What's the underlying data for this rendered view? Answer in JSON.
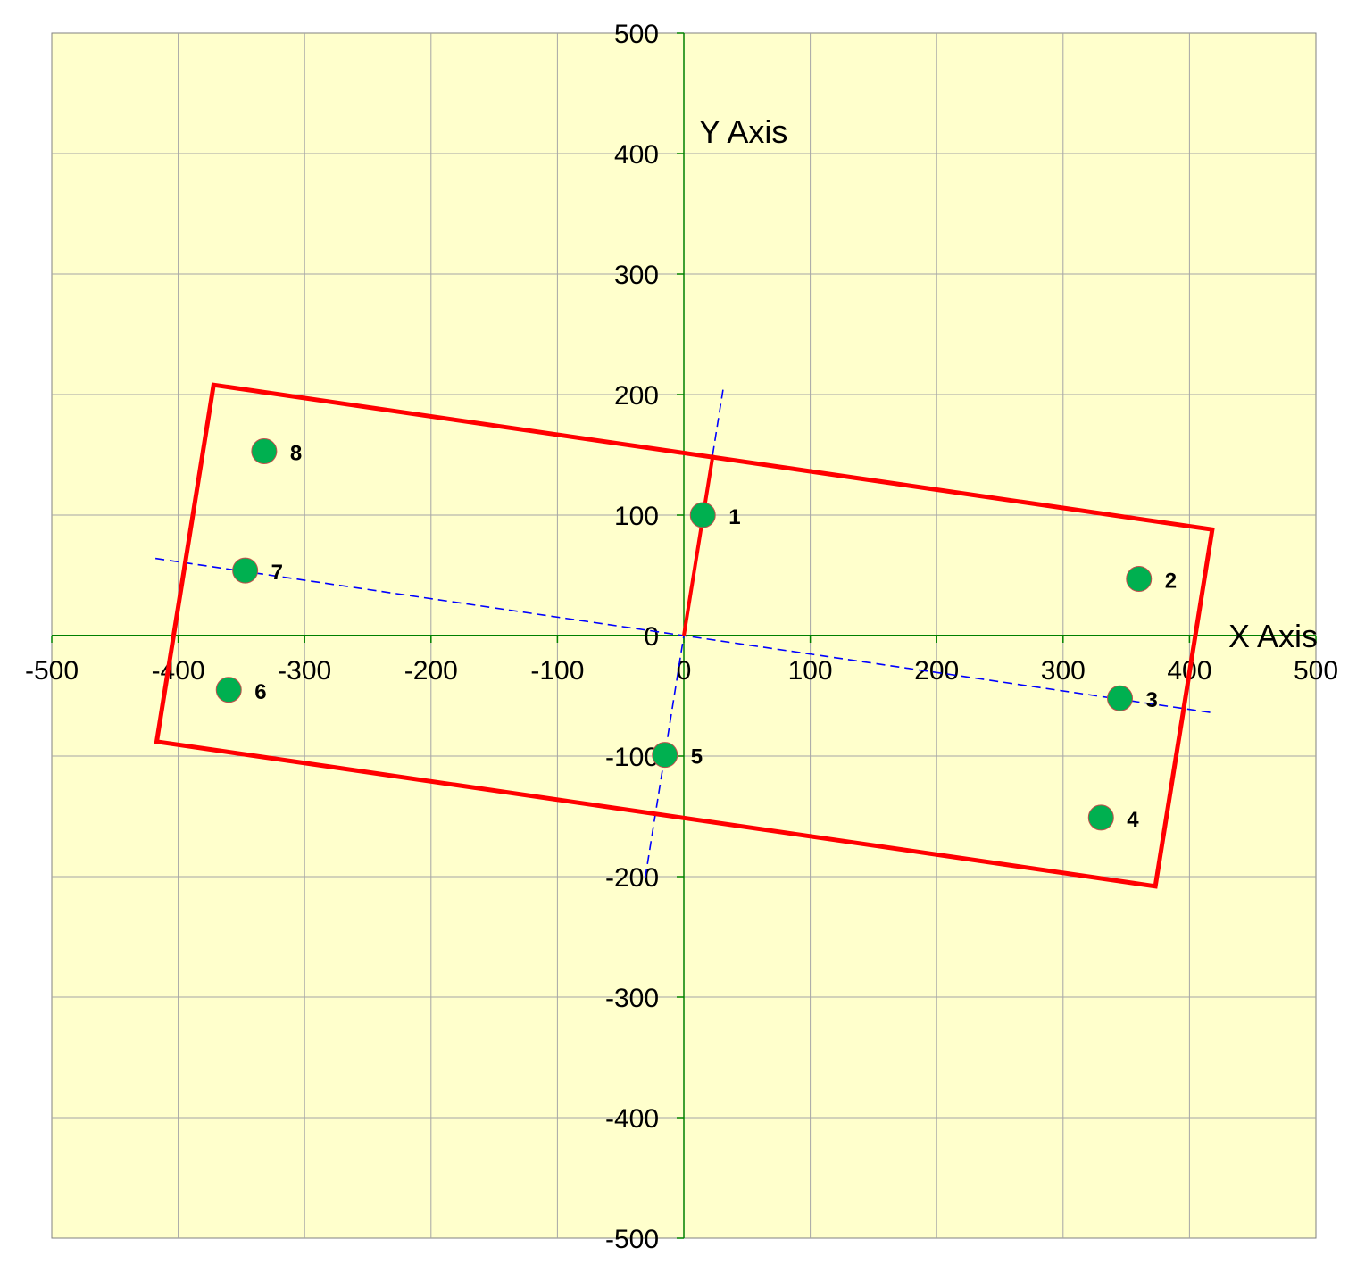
{
  "chart_data": {
    "type": "scatter",
    "xlabel": "X Axis",
    "ylabel": "Y Axis",
    "xlim": [
      -500,
      500
    ],
    "ylim": [
      -500,
      500
    ],
    "x_ticks": [
      -500,
      -400,
      -300,
      -200,
      -100,
      0,
      100,
      200,
      300,
      400,
      500
    ],
    "y_ticks": [
      500,
      400,
      300,
      200,
      100,
      0,
      -100,
      -200,
      -300,
      -400,
      -500
    ],
    "grid": true,
    "points": [
      {
        "label": "1",
        "x": 15,
        "y": 100
      },
      {
        "label": "2",
        "x": 360,
        "y": 47
      },
      {
        "label": "3",
        "x": 345,
        "y": -52
      },
      {
        "label": "4",
        "x": 330,
        "y": -151
      },
      {
        "label": "5",
        "x": -15,
        "y": -99
      },
      {
        "label": "6",
        "x": -360,
        "y": -45
      },
      {
        "label": "7",
        "x": -347,
        "y": 54
      },
      {
        "label": "8",
        "x": -332,
        "y": 153
      }
    ],
    "rectangle": [
      [
        -372,
        208
      ],
      [
        418,
        88
      ],
      [
        373,
        -208
      ],
      [
        -417,
        -88
      ]
    ],
    "principal_axes": [
      {
        "from": [
          -418,
          64
        ],
        "to": [
          418,
          -64
        ]
      },
      {
        "from": [
          31,
          204
        ],
        "to": [
          -31,
          -204
        ]
      }
    ],
    "orientation_vector": {
      "from": [
        0,
        0
      ],
      "to": [
        23,
        150
      ]
    },
    "colors": {
      "plot_background": "#ffffcc",
      "grid": "#a6a6a6",
      "axis_lines": "#008000",
      "rectangle": "#ff0000",
      "principal_axes": "#0000ff",
      "point_fill": "#00b050",
      "point_stroke": "#c0504d"
    }
  }
}
